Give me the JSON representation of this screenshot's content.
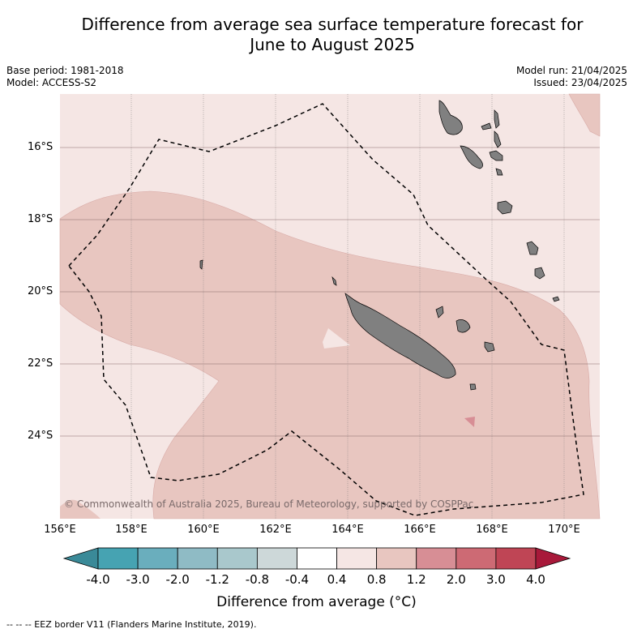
{
  "title_line1": "Difference from average sea surface temperature forecast for",
  "title_line2": "June to August 2025",
  "base_period": "Base period: 1981-2018",
  "model": "Model: ACCESS-S2",
  "model_run": "Model run: 21/04/2025",
  "issued": "Issued: 23/04/2025",
  "copyright": "© Commonwealth of Australia 2025, Bureau of Meteorology, supported by COSPPac",
  "lat_labels": [
    "16°S",
    "18°S",
    "20°S",
    "22°S",
    "24°S"
  ],
  "lon_labels": [
    "156°E",
    "158°E",
    "160°E",
    "162°E",
    "164°E",
    "166°E",
    "168°E",
    "170°E"
  ],
  "colorbar": {
    "title": "Difference from average (°C)",
    "ticks": [
      "-4.0",
      "-3.0",
      "-2.0",
      "-1.2",
      "-0.8",
      "-0.4",
      "0.4",
      "0.8",
      "1.2",
      "2.0",
      "3.0",
      "4.0"
    ],
    "colors": [
      "#3a8a98",
      "#46a3b2",
      "#6aaebd",
      "#8fbbc5",
      "#a9c8cc",
      "#cdd8d9",
      "#ffffff",
      "#f5e6e4",
      "#e8c6c0",
      "#d78e95",
      "#cd6a74",
      "#bf4555",
      "#a8193a"
    ]
  },
  "colors": {
    "land": "#808080",
    "anomaly_0_4_to_0_8": "#f5e6e4",
    "anomaly_0_8_to_1_2": "#e8c6c0",
    "anomaly_1_2_to_2_0": "#d78e95"
  },
  "legend_footer": "--  --  -- EEZ border V11 (Flanders Marine Institute, 2019)."
}
